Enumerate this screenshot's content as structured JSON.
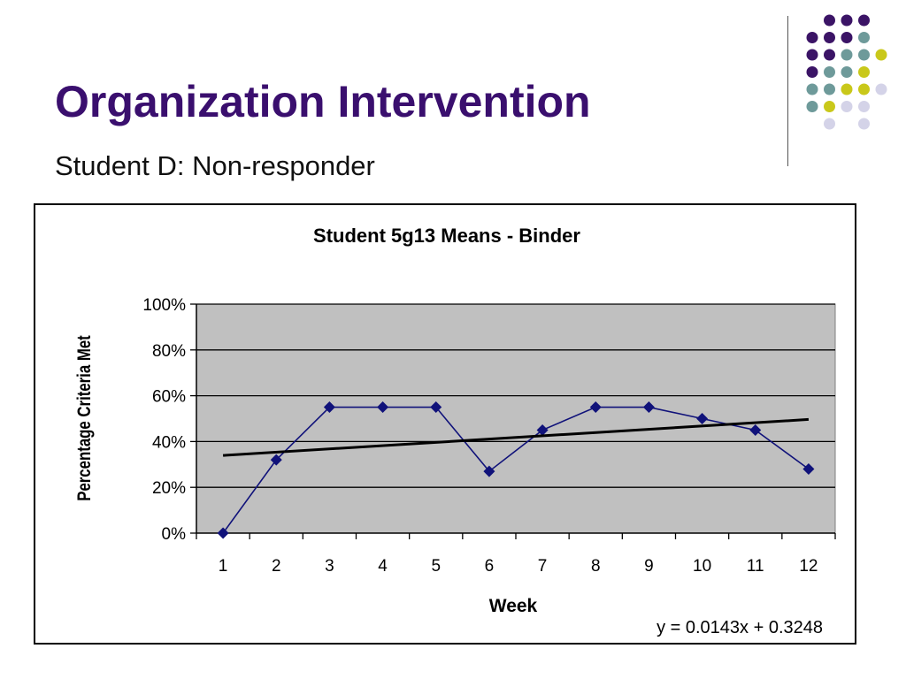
{
  "slide": {
    "title": "Organization Intervention",
    "subtitle": "Student D: Non-responder"
  },
  "decoration": {
    "icon": "dot-grid-icon",
    "colors": {
      "purple": "#3b1466",
      "teal": "#6e9a9a",
      "yellow": "#c9c81a",
      "lavender": "#d4d3e8"
    }
  },
  "chart_data": {
    "type": "line",
    "title": "Student 5g13 Means - Binder",
    "xlabel": "Week",
    "ylabel": "Percentage Criteria Met",
    "categories": [
      "1",
      "2",
      "3",
      "4",
      "5",
      "6",
      "7",
      "8",
      "9",
      "10",
      "11",
      "12"
    ],
    "series": [
      {
        "values": [
          0.0,
          0.32,
          0.55,
          0.55,
          0.55,
          0.27,
          0.45,
          0.55,
          0.55,
          0.5,
          0.45,
          0.28
        ],
        "color": "#10127a"
      }
    ],
    "trendline": {
      "slope": 0.0143,
      "intercept": 0.3248,
      "equation": "y = 0.0143x + 0.3248",
      "color": "#000000"
    },
    "yticks": [
      "0%",
      "20%",
      "40%",
      "60%",
      "80%",
      "100%"
    ],
    "ylim": [
      0,
      1
    ],
    "grid": true,
    "legend": "none",
    "plot_background": "#c0c0c0"
  }
}
